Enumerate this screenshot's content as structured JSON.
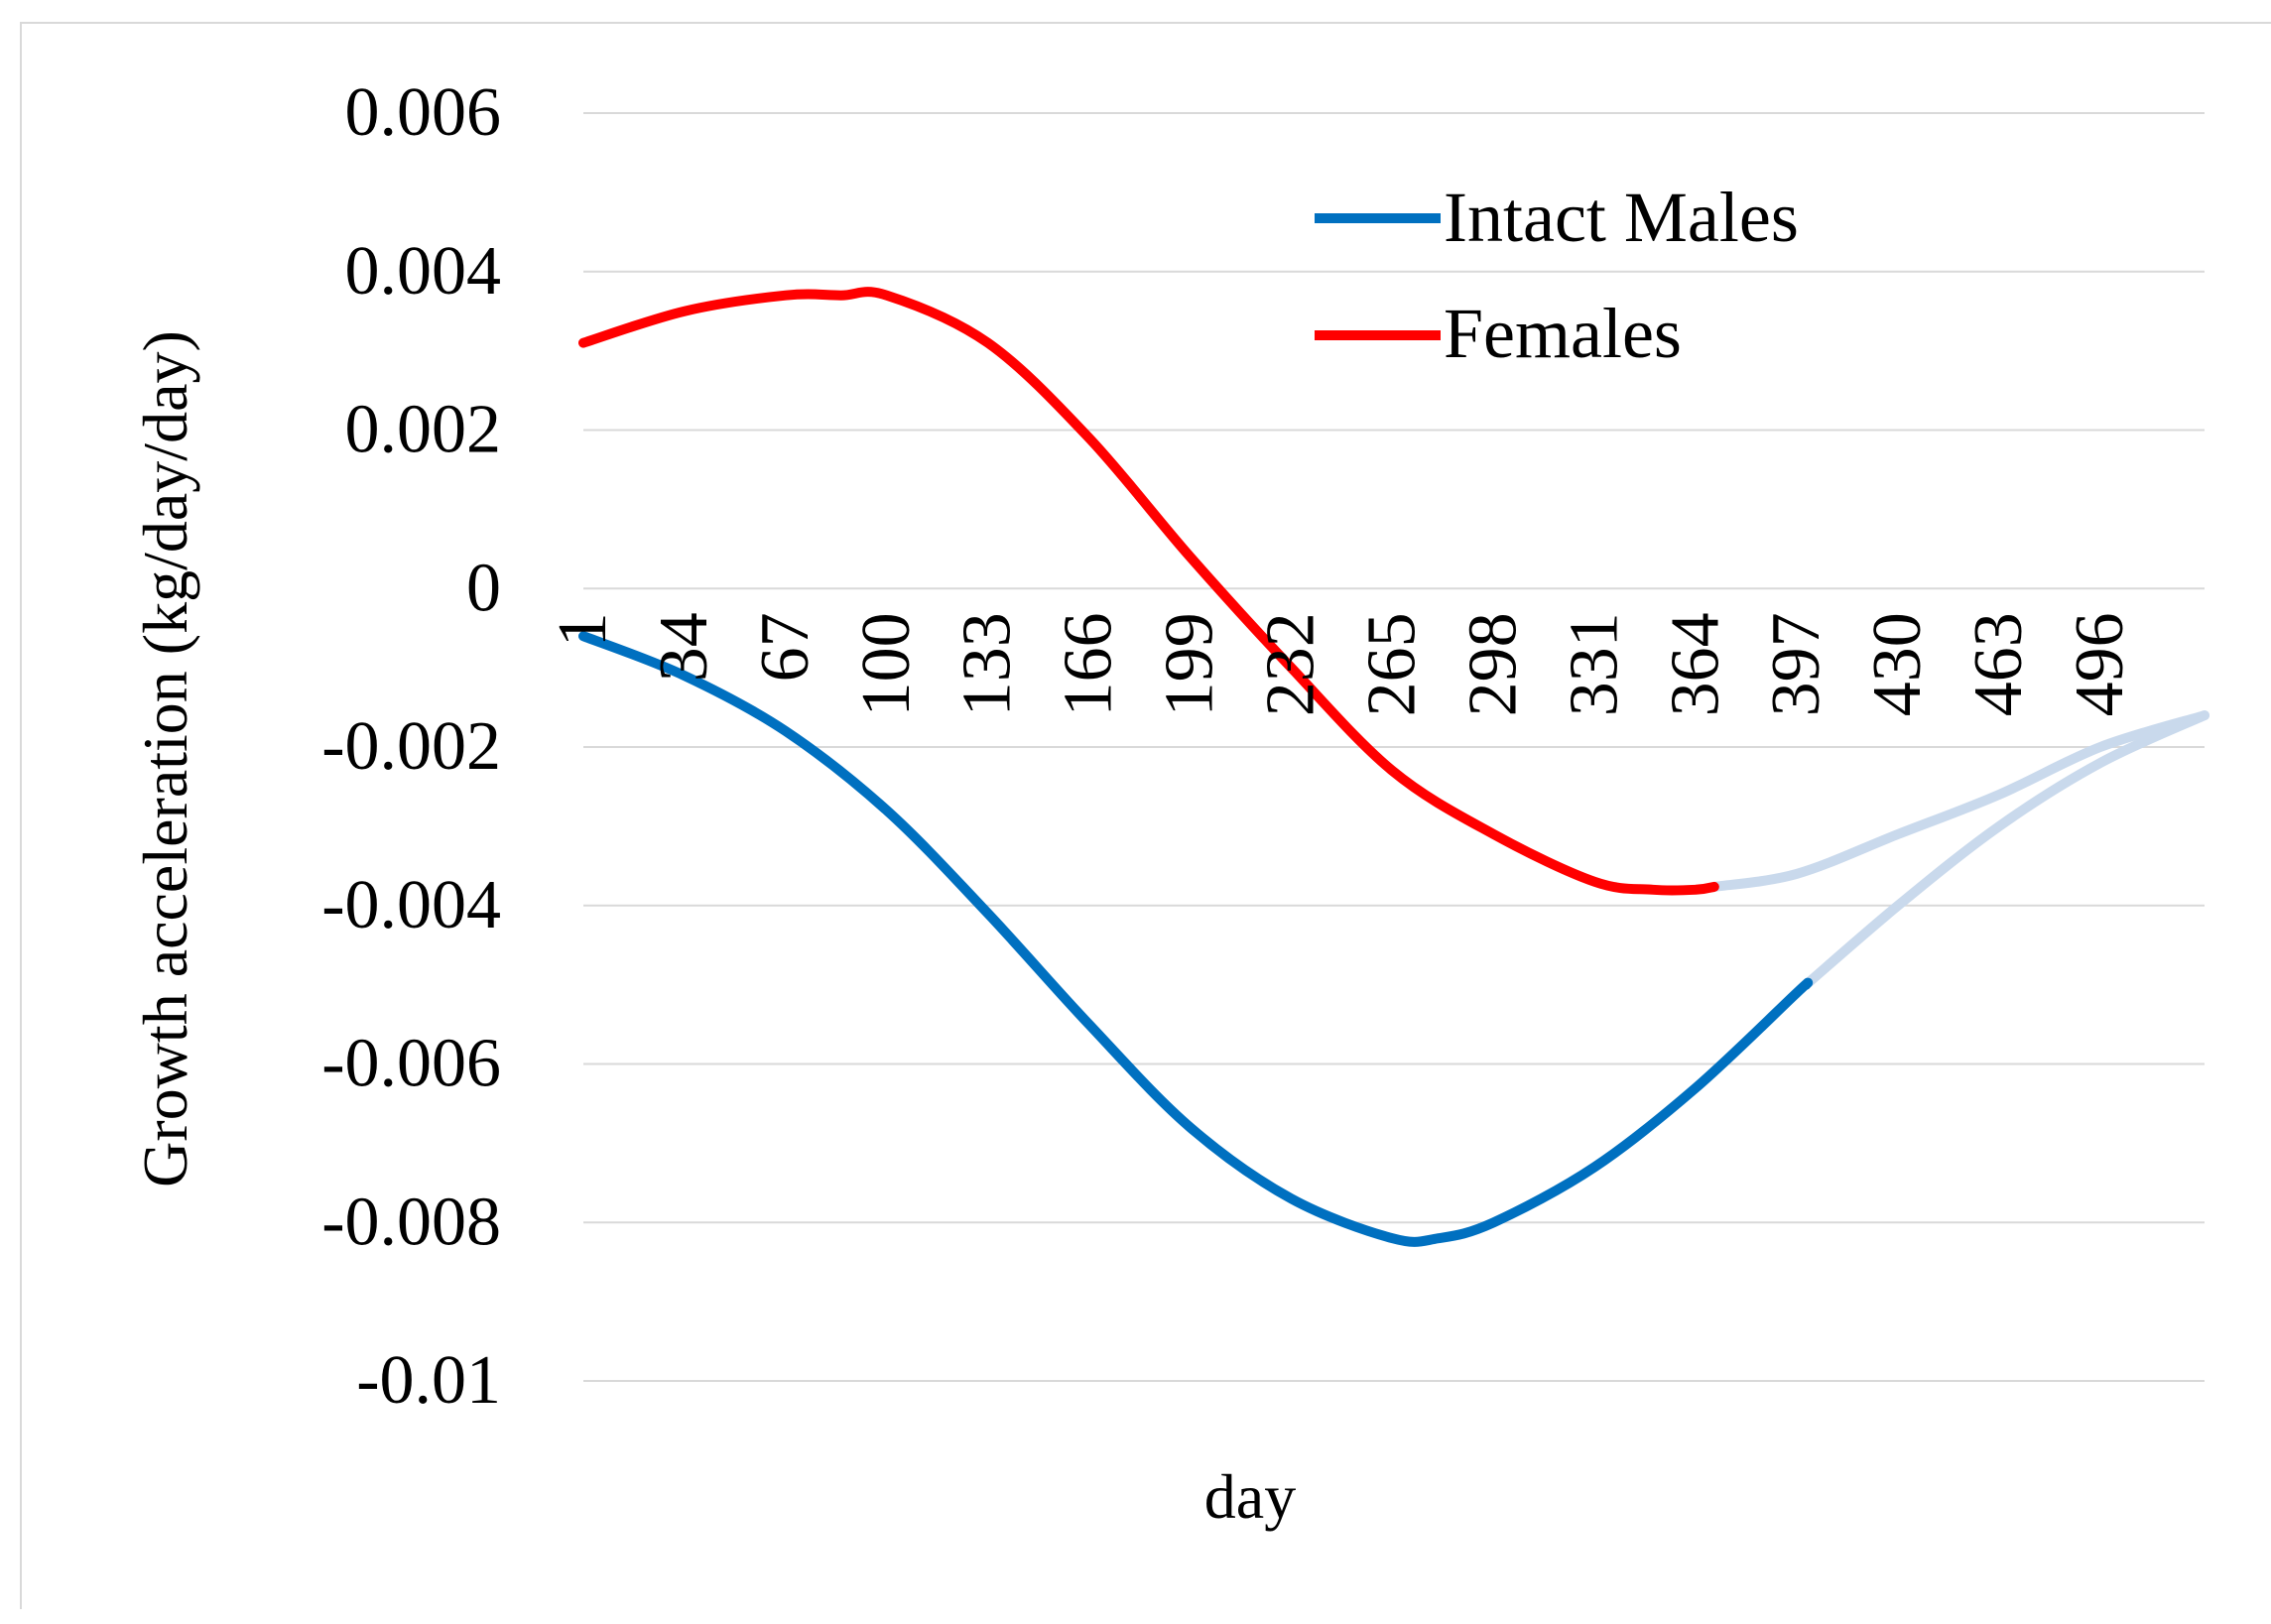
{
  "chart_data": {
    "type": "line",
    "title": "",
    "xlabel": "day",
    "ylabel": "Growth acceleration (kg/day/day)",
    "x_range": [
      1,
      530
    ],
    "ylim": [
      -0.01,
      0.006
    ],
    "y_ticks": [
      "0.006",
      "0.004",
      "0.002",
      "0",
      "-0.002",
      "-0.004",
      "-0.006",
      "-0.008",
      "-0.01"
    ],
    "y_tick_values": [
      0.006,
      0.004,
      0.002,
      0,
      -0.002,
      -0.004,
      -0.006,
      -0.008,
      -0.01
    ],
    "x_ticks": [
      "1",
      "34",
      "67",
      "100",
      "133",
      "166",
      "199",
      "232",
      "265",
      "298",
      "331",
      "364",
      "397",
      "430",
      "463",
      "496"
    ],
    "x_tick_values": [
      1,
      34,
      67,
      100,
      133,
      166,
      199,
      232,
      265,
      298,
      331,
      364,
      397,
      430,
      463,
      496
    ],
    "grid": true,
    "legend_position": "top-right",
    "series": [
      {
        "name": "Intact Males",
        "color": "#0070c0",
        "faded_color": "#c9d9ec",
        "fade_from_x": 400,
        "x": [
          1,
          34,
          67,
          100,
          133,
          166,
          199,
          232,
          265,
          280,
          298,
          331,
          364,
          397,
          430,
          463,
          496,
          530
        ],
        "values": [
          -0.0006,
          -0.0011,
          -0.0018,
          -0.0028,
          -0.0041,
          -0.0055,
          -0.0068,
          -0.0077,
          -0.0082,
          -0.0082,
          -0.008,
          -0.0073,
          -0.0063,
          -0.0051,
          -0.004,
          -0.003,
          -0.0022,
          -0.0016
        ]
      },
      {
        "name": "Females",
        "color": "#ff0000",
        "faded_color": "#c9d9ec",
        "fade_from_x": 370,
        "x": [
          1,
          34,
          67,
          85,
          100,
          133,
          166,
          199,
          232,
          265,
          298,
          331,
          350,
          364,
          397,
          430,
          463,
          496,
          530
        ],
        "values": [
          0.0031,
          0.0035,
          0.0037,
          0.0037,
          0.0037,
          0.0031,
          0.0019,
          0.0004,
          -0.001,
          -0.0023,
          -0.0031,
          -0.0037,
          -0.0038,
          -0.0038,
          -0.0036,
          -0.0031,
          -0.0026,
          -0.002,
          -0.0016
        ]
      }
    ]
  }
}
